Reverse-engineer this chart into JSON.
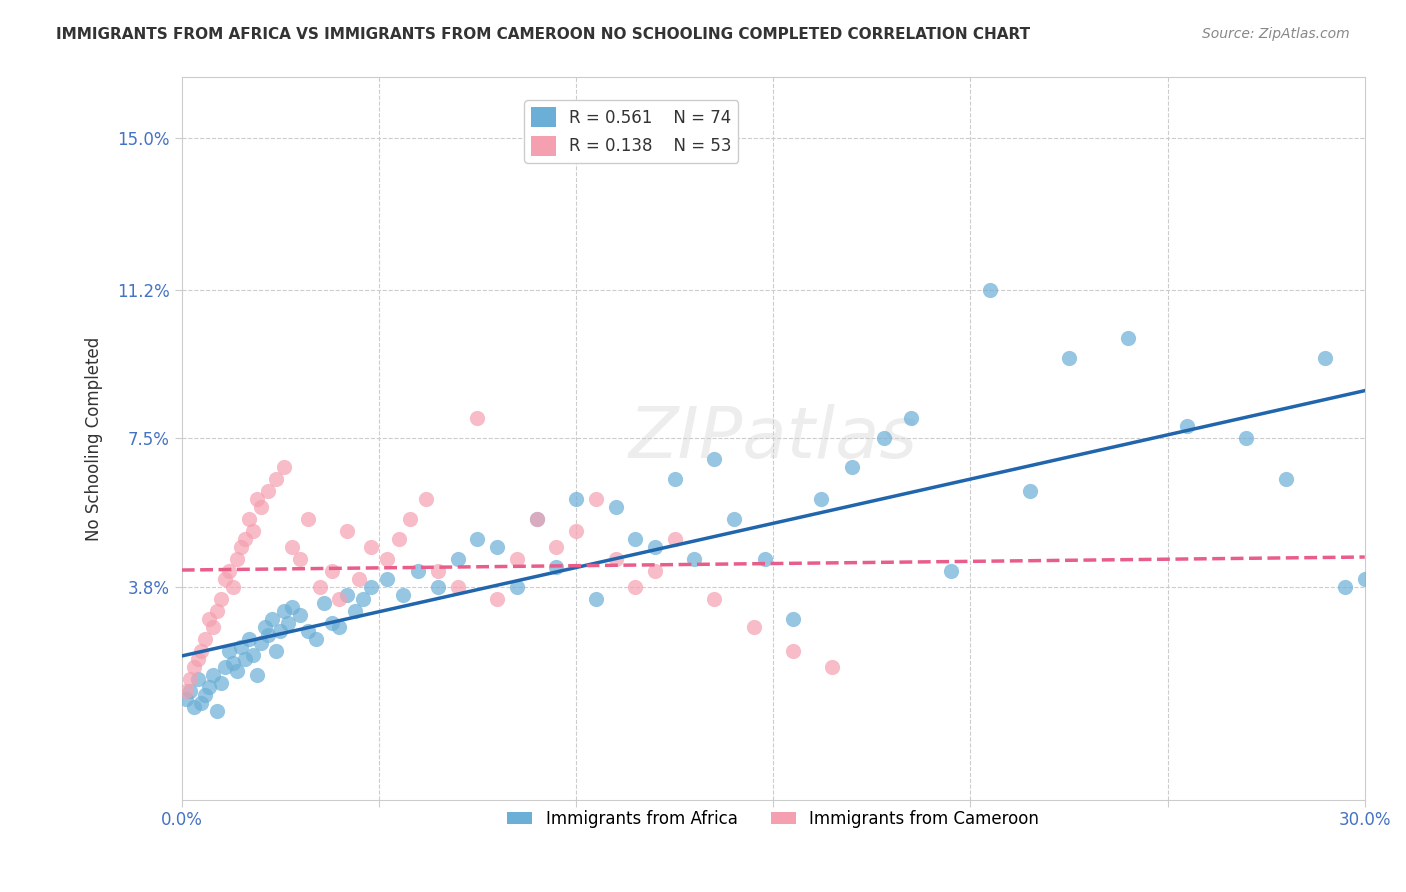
{
  "title": "IMMIGRANTS FROM AFRICA VS IMMIGRANTS FROM CAMEROON NO SCHOOLING COMPLETED CORRELATION CHART",
  "source": "Source: ZipAtlas.com",
  "ylabel": "No Schooling Completed",
  "xlabel": "",
  "xlim": [
    0,
    0.3
  ],
  "ylim": [
    -0.01,
    0.16
  ],
  "yticks": [
    0.038,
    0.075,
    0.112,
    0.15
  ],
  "ytick_labels": [
    "3.8%",
    "7.5%",
    "11.2%",
    "15.0%"
  ],
  "xticks": [
    0.0,
    0.05,
    0.1,
    0.15,
    0.2,
    0.25,
    0.3
  ],
  "xtick_labels": [
    "0.0%",
    "",
    "",
    "",
    "",
    "",
    "30.0%"
  ],
  "legend_r1": "R = 0.561",
  "legend_n1": "N = 74",
  "legend_r2": "R = 0.138",
  "legend_n2": "N = 53",
  "legend_label1": "Immigrants from Africa",
  "legend_label2": "Immigrants from Cameroon",
  "color_blue": "#6baed6",
  "color_pink": "#f4a0b0",
  "line_blue": "#2166ac",
  "line_pink": "#e85d8a",
  "watermark": "ZIPatlas",
  "africa_x": [
    0.001,
    0.002,
    0.003,
    0.004,
    0.005,
    0.006,
    0.007,
    0.008,
    0.009,
    0.01,
    0.011,
    0.012,
    0.013,
    0.014,
    0.015,
    0.016,
    0.017,
    0.018,
    0.019,
    0.02,
    0.021,
    0.022,
    0.023,
    0.024,
    0.025,
    0.026,
    0.027,
    0.028,
    0.03,
    0.032,
    0.034,
    0.036,
    0.038,
    0.04,
    0.042,
    0.044,
    0.046,
    0.048,
    0.052,
    0.056,
    0.06,
    0.065,
    0.07,
    0.075,
    0.08,
    0.085,
    0.09,
    0.095,
    0.1,
    0.105,
    0.11,
    0.115,
    0.12,
    0.125,
    0.13,
    0.135,
    0.14,
    0.148,
    0.155,
    0.162,
    0.17,
    0.178,
    0.185,
    0.195,
    0.205,
    0.215,
    0.225,
    0.24,
    0.255,
    0.27,
    0.28,
    0.29,
    0.295,
    0.3
  ],
  "africa_y": [
    0.01,
    0.012,
    0.008,
    0.015,
    0.009,
    0.011,
    0.013,
    0.016,
    0.007,
    0.014,
    0.018,
    0.022,
    0.019,
    0.017,
    0.023,
    0.02,
    0.025,
    0.021,
    0.016,
    0.024,
    0.028,
    0.026,
    0.03,
    0.022,
    0.027,
    0.032,
    0.029,
    0.033,
    0.031,
    0.027,
    0.025,
    0.034,
    0.029,
    0.028,
    0.036,
    0.032,
    0.035,
    0.038,
    0.04,
    0.036,
    0.042,
    0.038,
    0.045,
    0.05,
    0.048,
    0.038,
    0.055,
    0.043,
    0.06,
    0.035,
    0.058,
    0.05,
    0.048,
    0.065,
    0.045,
    0.07,
    0.055,
    0.045,
    0.03,
    0.06,
    0.068,
    0.075,
    0.08,
    0.042,
    0.112,
    0.062,
    0.095,
    0.1,
    0.078,
    0.075,
    0.065,
    0.095,
    0.038,
    0.04
  ],
  "cameroon_x": [
    0.001,
    0.002,
    0.003,
    0.004,
    0.005,
    0.006,
    0.007,
    0.008,
    0.009,
    0.01,
    0.011,
    0.012,
    0.013,
    0.014,
    0.015,
    0.016,
    0.017,
    0.018,
    0.019,
    0.02,
    0.022,
    0.024,
    0.026,
    0.028,
    0.03,
    0.032,
    0.035,
    0.038,
    0.04,
    0.042,
    0.045,
    0.048,
    0.052,
    0.055,
    0.058,
    0.062,
    0.065,
    0.07,
    0.075,
    0.08,
    0.085,
    0.09,
    0.095,
    0.1,
    0.105,
    0.11,
    0.115,
    0.12,
    0.125,
    0.135,
    0.145,
    0.155,
    0.165
  ],
  "cameroon_y": [
    0.012,
    0.015,
    0.018,
    0.02,
    0.022,
    0.025,
    0.03,
    0.028,
    0.032,
    0.035,
    0.04,
    0.042,
    0.038,
    0.045,
    0.048,
    0.05,
    0.055,
    0.052,
    0.06,
    0.058,
    0.062,
    0.065,
    0.068,
    0.048,
    0.045,
    0.055,
    0.038,
    0.042,
    0.035,
    0.052,
    0.04,
    0.048,
    0.045,
    0.05,
    0.055,
    0.06,
    0.042,
    0.038,
    0.08,
    0.035,
    0.045,
    0.055,
    0.048,
    0.052,
    0.06,
    0.045,
    0.038,
    0.042,
    0.05,
    0.035,
    0.028,
    0.022,
    0.018
  ]
}
